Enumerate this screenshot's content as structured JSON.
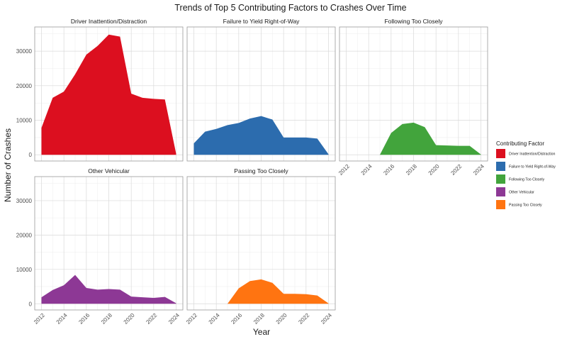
{
  "chart_data": {
    "type": "area",
    "title": "Trends of Top 5 Contributing Factors to Crashes Over Time",
    "xlabel": "Year",
    "ylabel": "Number of Crashes",
    "x": [
      2012,
      2013,
      2014,
      2015,
      2016,
      2017,
      2018,
      2019,
      2020,
      2021,
      2022,
      2023,
      2024
    ],
    "x_ticks": [
      2012,
      2014,
      2016,
      2018,
      2020,
      2022,
      2024
    ],
    "y_ticks": [
      0,
      10000,
      20000,
      30000
    ],
    "xlim": [
      2011.4,
      2024.6
    ],
    "ylim": [
      -1800,
      37000
    ],
    "grid": true,
    "legend": {
      "title": "Contributing Factor",
      "position": "right"
    },
    "series": [
      {
        "name": "Driver Inattention/Distraction",
        "color": "#DC0F1F",
        "values": [
          7800,
          16500,
          18300,
          23300,
          29000,
          31500,
          34800,
          34200,
          17700,
          16500,
          16200,
          16000,
          300
        ]
      },
      {
        "name": "Failure to Yield Right-of-Way",
        "color": "#2C6CAE",
        "values": [
          3300,
          6700,
          7500,
          8600,
          9200,
          10500,
          11200,
          10200,
          5000,
          5000,
          5000,
          4700,
          150
        ]
      },
      {
        "name": "Following Too Closely",
        "color": "#42A43C",
        "values": [
          0,
          0,
          0,
          0,
          6300,
          8900,
          9300,
          8000,
          2800,
          2700,
          2600,
          2600,
          100
        ]
      },
      {
        "name": "Other Vehicular",
        "color": "#8D3895",
        "values": [
          1900,
          4000,
          5400,
          8400,
          4600,
          4100,
          4300,
          4100,
          2100,
          1900,
          1700,
          2000,
          150
        ]
      },
      {
        "name": "Passing Too Closely",
        "color": "#FF7411",
        "values": [
          0,
          0,
          0,
          0,
          4500,
          6600,
          7100,
          6100,
          2900,
          2900,
          2800,
          2400,
          100
        ]
      }
    ]
  }
}
